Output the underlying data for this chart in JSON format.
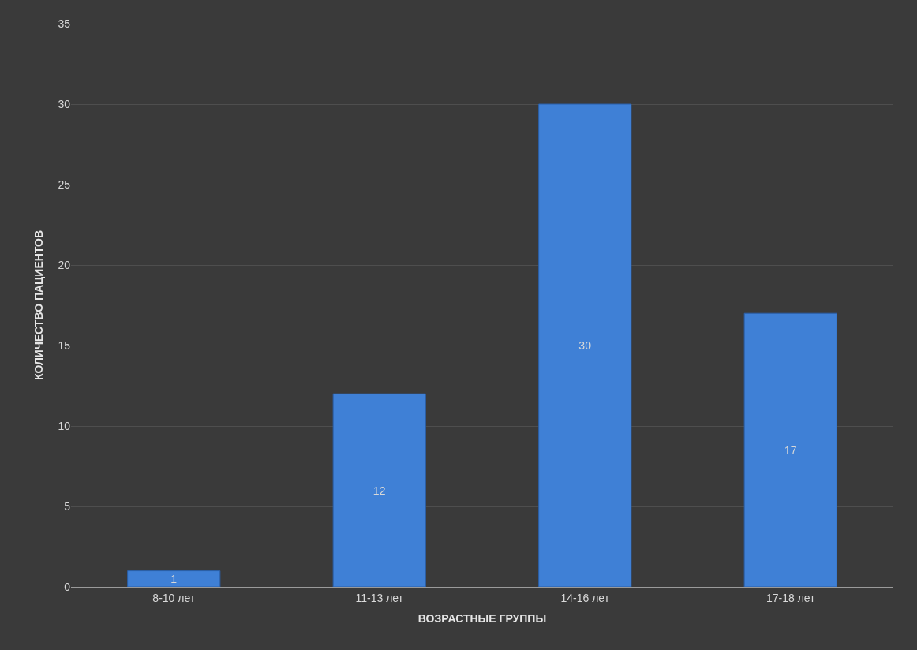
{
  "chart_data": {
    "type": "bar",
    "xlabel": "ВОЗРАСТНЫЕ ГРУППЫ",
    "ylabel": "КОЛИЧЕСТВО ПАЦИЕНТОВ",
    "categories": [
      "8-10 лет",
      "11-13 лет",
      "14-16 лет",
      "17-18 лет"
    ],
    "values": [
      1,
      12,
      30,
      17
    ],
    "color": "#3f80d6",
    "ylim": [
      0,
      35
    ],
    "yticks": [
      0,
      5,
      10,
      15,
      20,
      25,
      30,
      35
    ],
    "grid": "y",
    "data_labels": true,
    "legend": false
  }
}
